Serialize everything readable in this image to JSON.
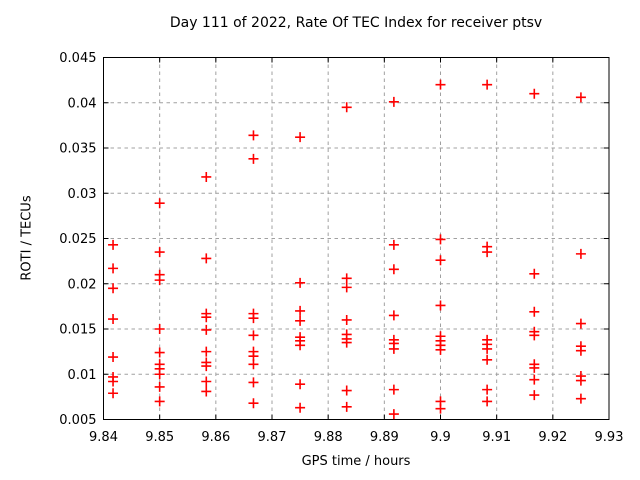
{
  "colors": {
    "background": "#ffffff",
    "axis": "#000000",
    "grid": "#a0a0a0",
    "marker": "#ff0000",
    "text": "#000000"
  },
  "chart_data": {
    "type": "scatter",
    "title": "Day 111 of 2022, Rate Of TEC Index for receiver ptsv",
    "xlabel": "GPS time / hours",
    "ylabel": "ROTI / TECUs",
    "xlim": [
      9.84,
      9.93
    ],
    "ylim": [
      0.005,
      0.045
    ],
    "grid": true,
    "legend": null,
    "marker": {
      "shape": "plus",
      "color": "#ff0000",
      "size": 10
    },
    "xticks": {
      "values": [
        9.84,
        9.85,
        9.86,
        9.87,
        9.88,
        9.89,
        9.9,
        9.91,
        9.92,
        9.93
      ],
      "labels": [
        "9.84",
        "9.85",
        "9.86",
        "9.87",
        "9.88",
        "9.89",
        "9.9",
        "9.91",
        "9.92",
        "9.93"
      ]
    },
    "yticks": {
      "values": [
        0.005,
        0.01,
        0.015,
        0.02,
        0.025,
        0.03,
        0.035,
        0.04,
        0.045
      ],
      "labels": [
        "0.005",
        "0.01",
        "0.015",
        "0.02",
        "0.025",
        "0.03",
        "0.035",
        "0.04",
        "0.045"
      ]
    },
    "series": [
      {
        "name": "ROTI",
        "points": [
          [
            9.8417,
            0.0243
          ],
          [
            9.8417,
            0.0217
          ],
          [
            9.8417,
            0.0195
          ],
          [
            9.8417,
            0.0161
          ],
          [
            9.8417,
            0.0119
          ],
          [
            9.8417,
            0.0097
          ],
          [
            9.8417,
            0.0092
          ],
          [
            9.8417,
            0.0079
          ],
          [
            9.85,
            0.0289
          ],
          [
            9.85,
            0.0235
          ],
          [
            9.85,
            0.021
          ],
          [
            9.85,
            0.0204
          ],
          [
            9.85,
            0.015
          ],
          [
            9.85,
            0.0124
          ],
          [
            9.85,
            0.0111
          ],
          [
            9.85,
            0.0106
          ],
          [
            9.85,
            0.01
          ],
          [
            9.85,
            0.0086
          ],
          [
            9.85,
            0.007
          ],
          [
            9.8583,
            0.0318
          ],
          [
            9.8583,
            0.0228
          ],
          [
            9.8583,
            0.0167
          ],
          [
            9.8583,
            0.0163
          ],
          [
            9.8583,
            0.0149
          ],
          [
            9.8583,
            0.0125
          ],
          [
            9.8583,
            0.0113
          ],
          [
            9.8583,
            0.0109
          ],
          [
            9.8583,
            0.0092
          ],
          [
            9.8583,
            0.0081
          ],
          [
            9.8667,
            0.0364
          ],
          [
            9.8667,
            0.0338
          ],
          [
            9.8667,
            0.0167
          ],
          [
            9.8667,
            0.0162
          ],
          [
            9.8667,
            0.0143
          ],
          [
            9.8667,
            0.0125
          ],
          [
            9.8667,
            0.012
          ],
          [
            9.8667,
            0.0111
          ],
          [
            9.8667,
            0.0091
          ],
          [
            9.8667,
            0.0068
          ],
          [
            9.875,
            0.0362
          ],
          [
            9.875,
            0.0201
          ],
          [
            9.875,
            0.017
          ],
          [
            9.875,
            0.0159
          ],
          [
            9.875,
            0.0141
          ],
          [
            9.875,
            0.0137
          ],
          [
            9.875,
            0.0132
          ],
          [
            9.875,
            0.0089
          ],
          [
            9.875,
            0.0063
          ],
          [
            9.8833,
            0.0395
          ],
          [
            9.8833,
            0.0206
          ],
          [
            9.8833,
            0.0196
          ],
          [
            9.8833,
            0.016
          ],
          [
            9.8833,
            0.0144
          ],
          [
            9.8833,
            0.0139
          ],
          [
            9.8833,
            0.0135
          ],
          [
            9.8833,
            0.0082
          ],
          [
            9.8833,
            0.0064
          ],
          [
            9.8917,
            0.0401
          ],
          [
            9.8917,
            0.0243
          ],
          [
            9.8917,
            0.0216
          ],
          [
            9.8917,
            0.0165
          ],
          [
            9.8917,
            0.0138
          ],
          [
            9.8917,
            0.0134
          ],
          [
            9.8917,
            0.0128
          ],
          [
            9.8917,
            0.0083
          ],
          [
            9.8917,
            0.0056
          ],
          [
            9.9,
            0.042
          ],
          [
            9.9,
            0.0249
          ],
          [
            9.9,
            0.0226
          ],
          [
            9.9,
            0.0176
          ],
          [
            9.9,
            0.0142
          ],
          [
            9.9,
            0.0137
          ],
          [
            9.9,
            0.0132
          ],
          [
            9.9,
            0.0127
          ],
          [
            9.9,
            0.007
          ],
          [
            9.9,
            0.0062
          ],
          [
            9.9083,
            0.042
          ],
          [
            9.9083,
            0.0241
          ],
          [
            9.9083,
            0.0235
          ],
          [
            9.9083,
            0.0138
          ],
          [
            9.9083,
            0.0133
          ],
          [
            9.9083,
            0.0128
          ],
          [
            9.9083,
            0.0116
          ],
          [
            9.9083,
            0.0083
          ],
          [
            9.9083,
            0.007
          ],
          [
            9.9167,
            0.041
          ],
          [
            9.9167,
            0.0211
          ],
          [
            9.9167,
            0.0169
          ],
          [
            9.9167,
            0.0147
          ],
          [
            9.9167,
            0.0143
          ],
          [
            9.9167,
            0.0111
          ],
          [
            9.9167,
            0.0107
          ],
          [
            9.9167,
            0.0094
          ],
          [
            9.9167,
            0.0077
          ],
          [
            9.925,
            0.0406
          ],
          [
            9.925,
            0.0233
          ],
          [
            9.925,
            0.0156
          ],
          [
            9.925,
            0.0131
          ],
          [
            9.925,
            0.0126
          ],
          [
            9.925,
            0.0098
          ],
          [
            9.925,
            0.0093
          ],
          [
            9.925,
            0.0073
          ]
        ]
      }
    ]
  }
}
